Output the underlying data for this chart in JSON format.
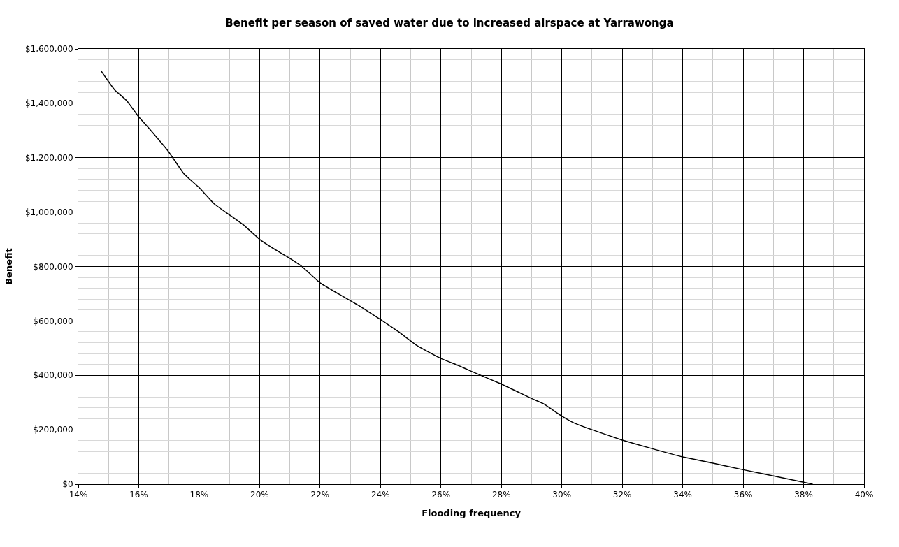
{
  "chart_data": {
    "type": "line",
    "title": "Benefit per season of saved water due to increased airspace at Yarrawonga",
    "xlabel": "Flooding frequency",
    "ylabel": "Benefit",
    "x": [
      14.75,
      15.0,
      15.2,
      15.6,
      16.0,
      16.4,
      17.0,
      17.5,
      18.0,
      18.5,
      19.0,
      19.5,
      20.0,
      20.4,
      21.0,
      21.4,
      22.0,
      22.6,
      23.3,
      24.0,
      24.6,
      25.2,
      25.6,
      26.0,
      26.6,
      27.0,
      28.0,
      29.0,
      29.4,
      30.0,
      30.4,
      31.0,
      32.0,
      33.0,
      34.0,
      35.0,
      36.0,
      37.0,
      38.3
    ],
    "series": [
      {
        "color": "#000000",
        "values": [
          1520000,
          1480000,
          1450000,
          1410000,
          1350000,
          1300000,
          1220000,
          1140000,
          1090000,
          1030000,
          990000,
          950000,
          900000,
          870000,
          830000,
          800000,
          740000,
          700000,
          655000,
          605000,
          560000,
          510000,
          485000,
          462000,
          435000,
          415000,
          368000,
          315000,
          295000,
          250000,
          225000,
          200000,
          162000,
          130000,
          100000,
          77000,
          53000,
          30000,
          0
        ]
      }
    ],
    "xlim": [
      14,
      40
    ],
    "xticks": [
      {
        "value": 14,
        "label": "14%"
      },
      {
        "value": 16,
        "label": "16%"
      },
      {
        "value": 18,
        "label": "18%"
      },
      {
        "value": 20,
        "label": "20%"
      },
      {
        "value": 22,
        "label": "22%"
      },
      {
        "value": 24,
        "label": "24%"
      },
      {
        "value": 26,
        "label": "26%"
      },
      {
        "value": 28,
        "label": "28%"
      },
      {
        "value": 30,
        "label": "30%"
      },
      {
        "value": 32,
        "label": "32%"
      },
      {
        "value": 34,
        "label": "34%"
      },
      {
        "value": 36,
        "label": "36%"
      },
      {
        "value": 38,
        "label": "38%"
      },
      {
        "value": 40,
        "label": "40%"
      }
    ],
    "ylim": [
      0,
      1600000
    ],
    "yticks": [
      {
        "value": 0,
        "label": "$0"
      },
      {
        "value": 200000,
        "label": "$200,000"
      },
      {
        "value": 400000,
        "label": "$400,000"
      },
      {
        "value": 600000,
        "label": "$600,000"
      },
      {
        "value": 800000,
        "label": "$800,000"
      },
      {
        "value": 1000000,
        "label": "$1,000,000"
      },
      {
        "value": 1200000,
        "label": "$1,200,000"
      },
      {
        "value": 1400000,
        "label": "$1,400,000"
      },
      {
        "value": 1600000,
        "label": "$1,600,000"
      }
    ],
    "grid": true,
    "marker": "none",
    "line_style": "solid"
  }
}
